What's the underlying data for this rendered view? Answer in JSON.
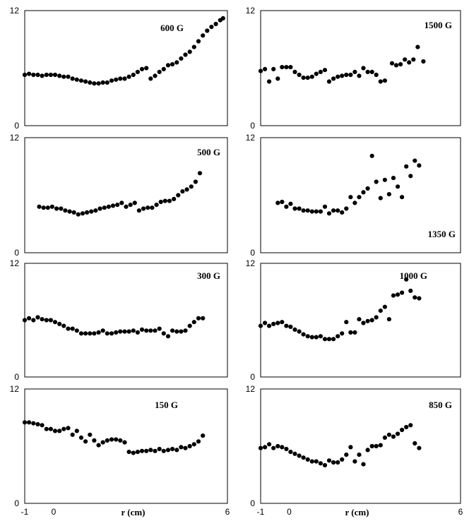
{
  "chart_data": [
    {
      "type": "scatter",
      "label": "600 G",
      "xlim": [
        -1,
        6
      ],
      "ylim": [
        0,
        12
      ],
      "yticks": [
        "0",
        "12"
      ],
      "xticks": [],
      "xlabel": "",
      "points": [
        [
          -1.0,
          5.3
        ],
        [
          -0.85,
          5.4
        ],
        [
          -0.7,
          5.3
        ],
        [
          -0.55,
          5.3
        ],
        [
          -0.4,
          5.2
        ],
        [
          -0.25,
          5.3
        ],
        [
          -0.1,
          5.3
        ],
        [
          0.05,
          5.3
        ],
        [
          0.2,
          5.2
        ],
        [
          0.35,
          5.1
        ],
        [
          0.5,
          5.1
        ],
        [
          0.65,
          4.9
        ],
        [
          0.8,
          4.8
        ],
        [
          0.95,
          4.7
        ],
        [
          1.1,
          4.6
        ],
        [
          1.25,
          4.5
        ],
        [
          1.4,
          4.4
        ],
        [
          1.55,
          4.4
        ],
        [
          1.7,
          4.5
        ],
        [
          1.85,
          4.5
        ],
        [
          2.0,
          4.7
        ],
        [
          2.15,
          4.8
        ],
        [
          2.3,
          4.9
        ],
        [
          2.45,
          4.9
        ],
        [
          2.6,
          5.1
        ],
        [
          2.75,
          5.3
        ],
        [
          2.9,
          5.6
        ],
        [
          3.05,
          5.9
        ],
        [
          3.2,
          6.0
        ],
        [
          3.35,
          4.9
        ],
        [
          3.5,
          5.2
        ],
        [
          3.65,
          5.6
        ],
        [
          3.8,
          5.9
        ],
        [
          3.95,
          6.3
        ],
        [
          4.1,
          6.4
        ],
        [
          4.25,
          6.6
        ],
        [
          4.4,
          7.0
        ],
        [
          4.55,
          7.4
        ],
        [
          4.7,
          7.7
        ],
        [
          4.85,
          8.2
        ],
        [
          5.0,
          8.8
        ],
        [
          5.15,
          9.4
        ],
        [
          5.3,
          9.9
        ],
        [
          5.45,
          10.3
        ],
        [
          5.6,
          10.6
        ],
        [
          5.75,
          11.0
        ],
        [
          5.85,
          11.2
        ]
      ]
    },
    {
      "type": "scatter",
      "label": "1500 G",
      "xlim": [
        -1,
        6
      ],
      "ylim": [
        0,
        12
      ],
      "yticks": [
        "0",
        "12"
      ],
      "xticks": [],
      "xlabel": "",
      "points": [
        [
          -1.0,
          5.7
        ],
        [
          -0.85,
          5.9
        ],
        [
          -0.7,
          4.6
        ],
        [
          -0.55,
          5.9
        ],
        [
          -0.4,
          4.9
        ],
        [
          -0.25,
          6.1
        ],
        [
          -0.1,
          6.1
        ],
        [
          0.05,
          6.1
        ],
        [
          0.2,
          5.6
        ],
        [
          0.35,
          5.3
        ],
        [
          0.5,
          5.0
        ],
        [
          0.65,
          5.0
        ],
        [
          0.8,
          5.1
        ],
        [
          0.95,
          5.4
        ],
        [
          1.1,
          5.6
        ],
        [
          1.25,
          5.8
        ],
        [
          1.4,
          4.6
        ],
        [
          1.55,
          4.9
        ],
        [
          1.7,
          5.1
        ],
        [
          1.85,
          5.2
        ],
        [
          2.0,
          5.3
        ],
        [
          2.15,
          5.3
        ],
        [
          2.3,
          5.6
        ],
        [
          2.45,
          5.2
        ],
        [
          2.6,
          6.0
        ],
        [
          2.75,
          5.6
        ],
        [
          2.9,
          5.6
        ],
        [
          3.05,
          5.3
        ],
        [
          3.2,
          4.6
        ],
        [
          3.35,
          4.7
        ],
        [
          3.6,
          6.5
        ],
        [
          3.75,
          6.3
        ],
        [
          3.9,
          6.4
        ],
        [
          4.05,
          6.9
        ],
        [
          4.2,
          6.6
        ],
        [
          4.35,
          6.9
        ],
        [
          4.5,
          8.2
        ],
        [
          4.7,
          6.7
        ]
      ]
    },
    {
      "type": "scatter",
      "label": "500 G",
      "xlim": [
        -1,
        6
      ],
      "ylim": [
        0,
        12
      ],
      "yticks": [
        "0",
        "12"
      ],
      "xticks": [],
      "xlabel": "",
      "points": [
        [
          -0.5,
          4.8
        ],
        [
          -0.35,
          4.7
        ],
        [
          -0.2,
          4.7
        ],
        [
          -0.05,
          4.8
        ],
        [
          0.1,
          4.6
        ],
        [
          0.25,
          4.6
        ],
        [
          0.4,
          4.4
        ],
        [
          0.55,
          4.3
        ],
        [
          0.7,
          4.2
        ],
        [
          0.85,
          4.0
        ],
        [
          1.0,
          4.1
        ],
        [
          1.15,
          4.2
        ],
        [
          1.3,
          4.3
        ],
        [
          1.45,
          4.4
        ],
        [
          1.6,
          4.6
        ],
        [
          1.75,
          4.7
        ],
        [
          1.9,
          4.8
        ],
        [
          2.05,
          4.9
        ],
        [
          2.2,
          5.0
        ],
        [
          2.35,
          5.2
        ],
        [
          2.5,
          4.8
        ],
        [
          2.65,
          5.0
        ],
        [
          2.8,
          5.2
        ],
        [
          2.95,
          4.4
        ],
        [
          3.1,
          4.6
        ],
        [
          3.25,
          4.7
        ],
        [
          3.4,
          4.7
        ],
        [
          3.55,
          5.0
        ],
        [
          3.7,
          5.3
        ],
        [
          3.85,
          5.4
        ],
        [
          4.0,
          5.4
        ],
        [
          4.15,
          5.6
        ],
        [
          4.3,
          6.0
        ],
        [
          4.45,
          6.4
        ],
        [
          4.6,
          6.6
        ],
        [
          4.75,
          6.9
        ],
        [
          4.9,
          7.4
        ],
        [
          5.05,
          8.3
        ]
      ]
    },
    {
      "type": "scatter",
      "label": "1350 G",
      "xlim": [
        -1,
        6
      ],
      "ylim": [
        0,
        12
      ],
      "yticks": [
        "0",
        "12"
      ],
      "xticks": [],
      "xlabel": "",
      "points": [
        [
          -0.4,
          5.2
        ],
        [
          -0.25,
          5.3
        ],
        [
          -0.1,
          4.8
        ],
        [
          0.05,
          5.1
        ],
        [
          0.2,
          4.6
        ],
        [
          0.35,
          4.6
        ],
        [
          0.5,
          4.4
        ],
        [
          0.65,
          4.4
        ],
        [
          0.8,
          4.3
        ],
        [
          0.95,
          4.3
        ],
        [
          1.1,
          4.3
        ],
        [
          1.25,
          4.8
        ],
        [
          1.4,
          4.1
        ],
        [
          1.55,
          4.4
        ],
        [
          1.7,
          4.4
        ],
        [
          1.85,
          4.2
        ],
        [
          2.0,
          4.6
        ],
        [
          2.15,
          5.8
        ],
        [
          2.3,
          5.2
        ],
        [
          2.45,
          5.8
        ],
        [
          2.6,
          6.3
        ],
        [
          2.75,
          6.7
        ],
        [
          2.9,
          10.1
        ],
        [
          3.05,
          7.4
        ],
        [
          3.2,
          5.7
        ],
        [
          3.35,
          7.6
        ],
        [
          3.5,
          6.1
        ],
        [
          3.65,
          7.8
        ],
        [
          3.8,
          6.9
        ],
        [
          3.95,
          5.8
        ],
        [
          4.1,
          9.0
        ],
        [
          4.25,
          8.0
        ],
        [
          4.4,
          9.6
        ],
        [
          4.55,
          9.1
        ]
      ]
    },
    {
      "type": "scatter",
      "label": "300 G",
      "xlim": [
        -1,
        6
      ],
      "ylim": [
        0,
        12
      ],
      "yticks": [
        "0",
        "12"
      ],
      "xticks": [],
      "xlabel": "",
      "points": [
        [
          -1.0,
          6.0
        ],
        [
          -0.85,
          6.2
        ],
        [
          -0.7,
          6.0
        ],
        [
          -0.55,
          6.3
        ],
        [
          -0.4,
          6.1
        ],
        [
          -0.25,
          6.0
        ],
        [
          -0.1,
          6.0
        ],
        [
          0.05,
          5.8
        ],
        [
          0.2,
          5.6
        ],
        [
          0.35,
          5.4
        ],
        [
          0.5,
          5.1
        ],
        [
          0.65,
          5.1
        ],
        [
          0.8,
          4.9
        ],
        [
          0.95,
          4.6
        ],
        [
          1.1,
          4.6
        ],
        [
          1.25,
          4.6
        ],
        [
          1.4,
          4.6
        ],
        [
          1.55,
          4.7
        ],
        [
          1.7,
          4.9
        ],
        [
          1.85,
          4.6
        ],
        [
          2.0,
          4.6
        ],
        [
          2.15,
          4.7
        ],
        [
          2.3,
          4.8
        ],
        [
          2.45,
          4.8
        ],
        [
          2.6,
          4.8
        ],
        [
          2.75,
          4.9
        ],
        [
          2.9,
          4.7
        ],
        [
          3.05,
          5.0
        ],
        [
          3.2,
          4.9
        ],
        [
          3.35,
          4.9
        ],
        [
          3.5,
          4.9
        ],
        [
          3.65,
          5.1
        ],
        [
          3.8,
          4.6
        ],
        [
          3.95,
          4.3
        ],
        [
          4.1,
          4.9
        ],
        [
          4.25,
          4.8
        ],
        [
          4.4,
          4.8
        ],
        [
          4.55,
          4.9
        ],
        [
          4.7,
          5.4
        ],
        [
          4.85,
          5.8
        ],
        [
          5.0,
          6.2
        ],
        [
          5.15,
          6.2
        ]
      ]
    },
    {
      "type": "scatter",
      "label": "1000 G",
      "xlim": [
        -1,
        6
      ],
      "ylim": [
        0,
        12
      ],
      "yticks": [
        "0",
        "12"
      ],
      "xticks": [],
      "xlabel": "",
      "points": [
        [
          -1.0,
          5.4
        ],
        [
          -0.85,
          5.7
        ],
        [
          -0.7,
          5.4
        ],
        [
          -0.55,
          5.6
        ],
        [
          -0.4,
          5.7
        ],
        [
          -0.25,
          5.8
        ],
        [
          -0.1,
          5.4
        ],
        [
          0.05,
          5.3
        ],
        [
          0.2,
          5.0
        ],
        [
          0.35,
          4.8
        ],
        [
          0.5,
          4.5
        ],
        [
          0.65,
          4.3
        ],
        [
          0.8,
          4.2
        ],
        [
          0.95,
          4.2
        ],
        [
          1.1,
          4.3
        ],
        [
          1.25,
          4.0
        ],
        [
          1.4,
          4.0
        ],
        [
          1.55,
          4.0
        ],
        [
          1.7,
          4.3
        ],
        [
          1.85,
          4.6
        ],
        [
          2.0,
          5.8
        ],
        [
          2.15,
          4.7
        ],
        [
          2.3,
          4.7
        ],
        [
          2.45,
          6.1
        ],
        [
          2.6,
          5.7
        ],
        [
          2.75,
          5.9
        ],
        [
          2.9,
          6.0
        ],
        [
          3.05,
          6.3
        ],
        [
          3.2,
          7.0
        ],
        [
          3.35,
          7.4
        ],
        [
          3.5,
          6.1
        ],
        [
          3.65,
          8.6
        ],
        [
          3.8,
          8.7
        ],
        [
          3.95,
          8.9
        ],
        [
          4.1,
          10.3
        ],
        [
          4.25,
          9.1
        ],
        [
          4.4,
          8.4
        ],
        [
          4.55,
          8.3
        ]
      ]
    },
    {
      "type": "scatter",
      "label": "150 G",
      "xlim": [
        -1,
        6
      ],
      "ylim": [
        0,
        12
      ],
      "yticks": [
        "0",
        "12"
      ],
      "xticks": [
        "-1",
        "0",
        "6"
      ],
      "xlabel": "r (cm)",
      "points": [
        [
          -1.0,
          8.5
        ],
        [
          -0.85,
          8.5
        ],
        [
          -0.7,
          8.4
        ],
        [
          -0.55,
          8.3
        ],
        [
          -0.4,
          8.2
        ],
        [
          -0.25,
          7.8
        ],
        [
          -0.1,
          7.8
        ],
        [
          0.05,
          7.6
        ],
        [
          0.2,
          7.6
        ],
        [
          0.35,
          7.8
        ],
        [
          0.5,
          7.9
        ],
        [
          0.65,
          7.2
        ],
        [
          0.8,
          7.6
        ],
        [
          0.95,
          6.9
        ],
        [
          1.1,
          6.5
        ],
        [
          1.25,
          7.2
        ],
        [
          1.4,
          6.6
        ],
        [
          1.55,
          6.1
        ],
        [
          1.7,
          6.4
        ],
        [
          1.85,
          6.6
        ],
        [
          2.0,
          6.7
        ],
        [
          2.15,
          6.7
        ],
        [
          2.3,
          6.6
        ],
        [
          2.45,
          6.4
        ],
        [
          2.6,
          5.4
        ],
        [
          2.75,
          5.3
        ],
        [
          2.9,
          5.4
        ],
        [
          3.05,
          5.5
        ],
        [
          3.2,
          5.5
        ],
        [
          3.35,
          5.6
        ],
        [
          3.5,
          5.5
        ],
        [
          3.65,
          5.7
        ],
        [
          3.8,
          5.5
        ],
        [
          3.95,
          5.6
        ],
        [
          4.1,
          5.7
        ],
        [
          4.25,
          5.6
        ],
        [
          4.4,
          5.9
        ],
        [
          4.55,
          5.8
        ],
        [
          4.7,
          6.0
        ],
        [
          4.85,
          6.2
        ],
        [
          5.0,
          6.5
        ],
        [
          5.15,
          7.1
        ]
      ]
    },
    {
      "type": "scatter",
      "label": "850 G",
      "xlim": [
        -1,
        6
      ],
      "ylim": [
        0,
        12
      ],
      "yticks": [
        "0",
        "12"
      ],
      "xticks": [
        "-1",
        "0",
        "6"
      ],
      "xlabel": "r (cm)",
      "points": [
        [
          -1.0,
          5.8
        ],
        [
          -0.85,
          5.9
        ],
        [
          -0.7,
          6.2
        ],
        [
          -0.55,
          5.8
        ],
        [
          -0.4,
          6.0
        ],
        [
          -0.25,
          5.9
        ],
        [
          -0.1,
          5.7
        ],
        [
          0.05,
          5.4
        ],
        [
          0.2,
          5.2
        ],
        [
          0.35,
          5.0
        ],
        [
          0.5,
          4.8
        ],
        [
          0.65,
          4.6
        ],
        [
          0.8,
          4.4
        ],
        [
          0.95,
          4.4
        ],
        [
          1.1,
          4.2
        ],
        [
          1.25,
          4.0
        ],
        [
          1.4,
          4.5
        ],
        [
          1.55,
          4.3
        ],
        [
          1.7,
          4.3
        ],
        [
          1.85,
          4.6
        ],
        [
          2.0,
          5.1
        ],
        [
          2.15,
          5.9
        ],
        [
          2.3,
          4.4
        ],
        [
          2.45,
          5.1
        ],
        [
          2.6,
          4.1
        ],
        [
          2.75,
          5.6
        ],
        [
          2.9,
          6.0
        ],
        [
          3.05,
          6.0
        ],
        [
          3.2,
          6.1
        ],
        [
          3.35,
          6.9
        ],
        [
          3.5,
          7.2
        ],
        [
          3.65,
          7.0
        ],
        [
          3.8,
          7.3
        ],
        [
          3.95,
          7.7
        ],
        [
          4.1,
          8.0
        ],
        [
          4.25,
          8.2
        ],
        [
          4.4,
          6.3
        ],
        [
          4.55,
          5.8
        ]
      ]
    }
  ]
}
